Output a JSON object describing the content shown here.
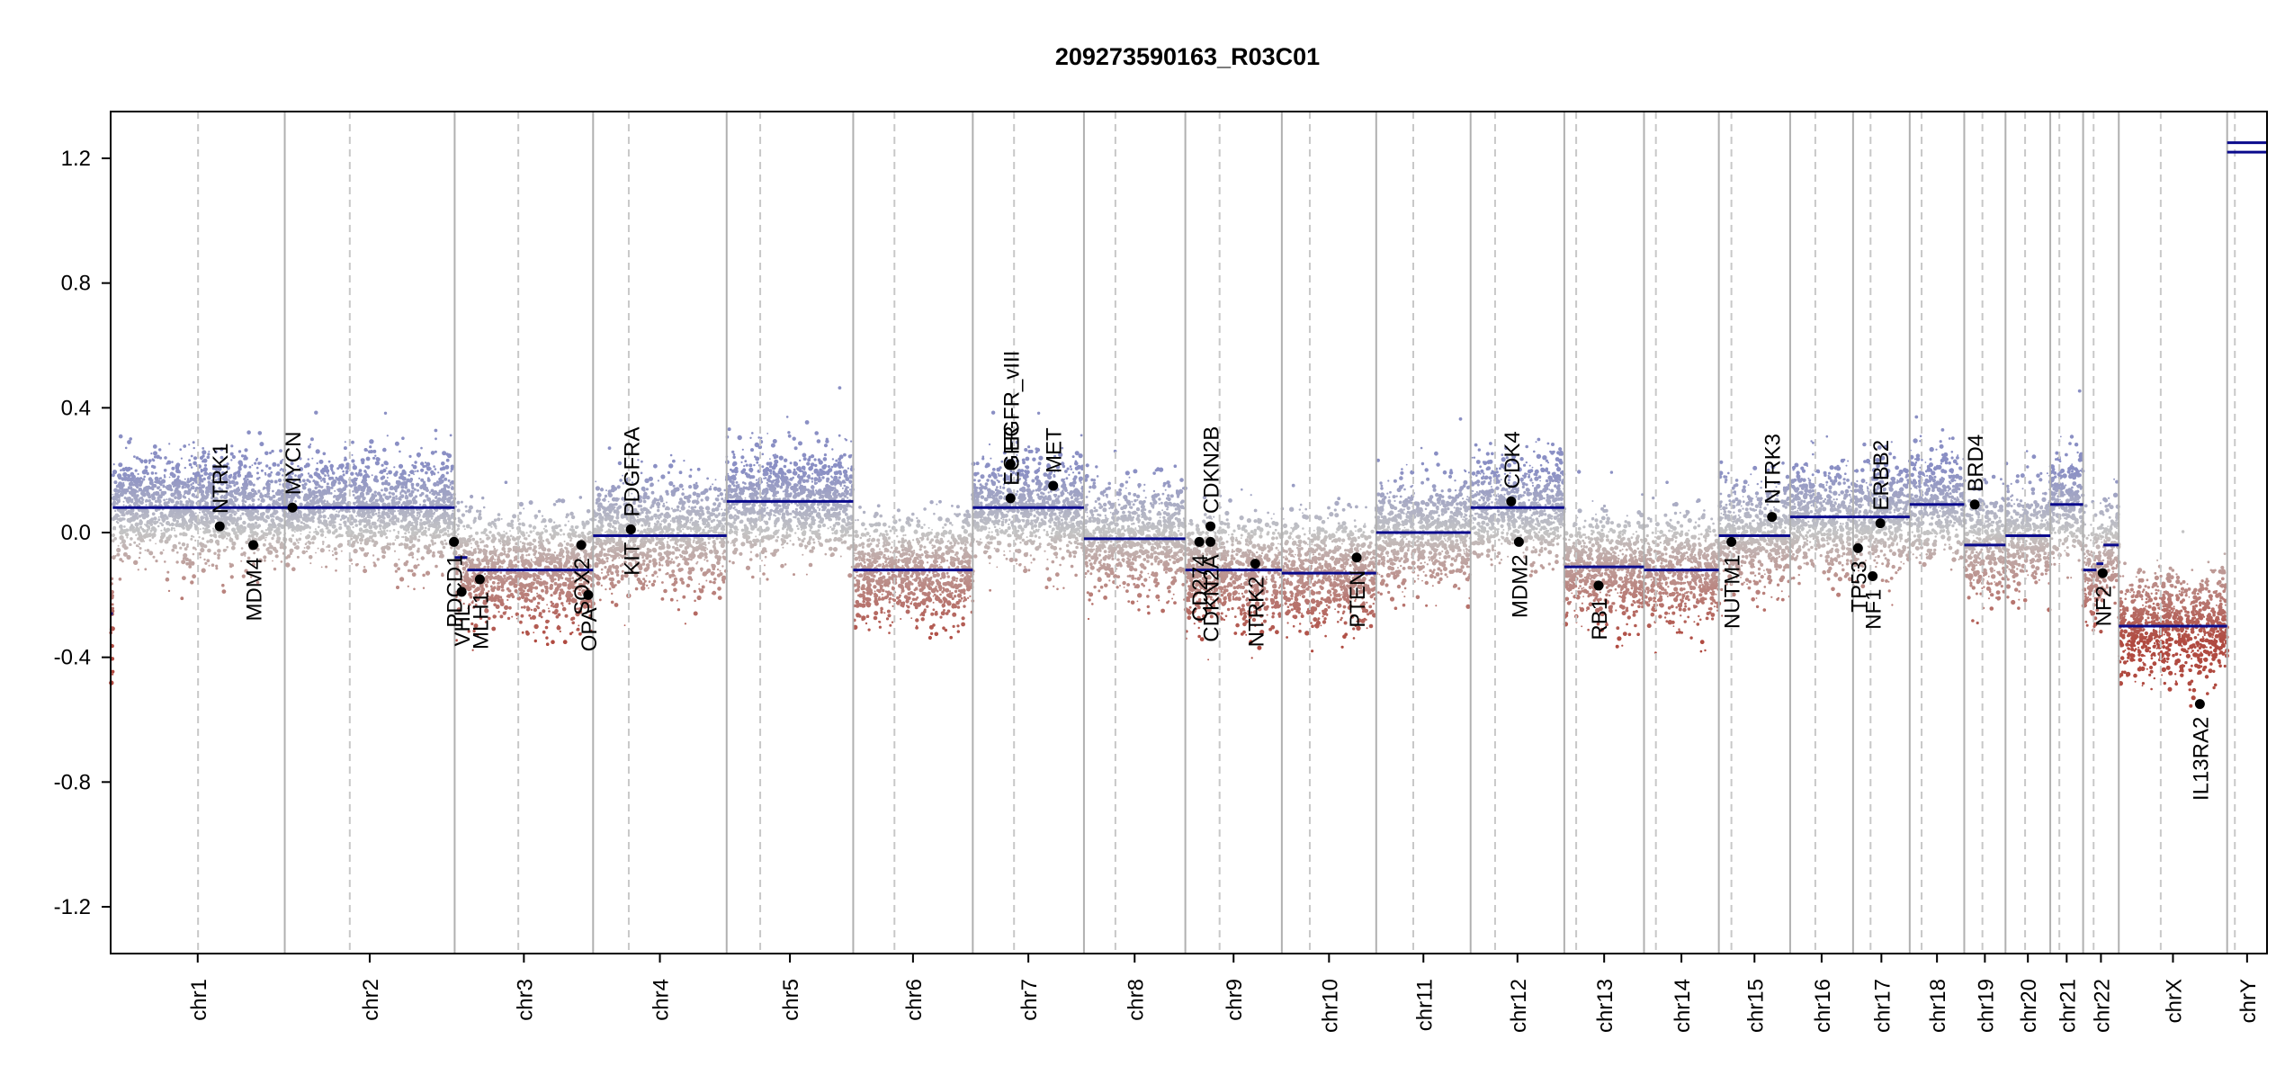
{
  "chart_data": {
    "type": "scatter",
    "title": "209273590163_R03C01",
    "xlabel": "",
    "ylabel": "",
    "ylim": [
      -1.35,
      1.35
    ],
    "yticks": [
      -1.2,
      -0.8,
      -0.4,
      0.0,
      0.4,
      0.8,
      1.2
    ],
    "ytick_labels": [
      "-1.2",
      "-0.8",
      "-0.4",
      "0.0",
      "0.4",
      "0.8",
      "1.2"
    ],
    "x_unit": "cumulative genome position (Mb)",
    "grid": false,
    "colors": {
      "gain": "#8a8fc4",
      "neutral": "#c4c4c4",
      "loss": "#b04a40",
      "segment": "#0a0a8c",
      "chrom_border": "#b0b0b0",
      "centromere": "#c8c8c8",
      "gene_point": "#000000"
    },
    "chromosomes": [
      {
        "name": "chr1",
        "label": "chr1",
        "start": 0,
        "end": 249,
        "centromere": 125
      },
      {
        "name": "chr2",
        "label": "chr2",
        "start": 249,
        "end": 492,
        "centromere": 342
      },
      {
        "name": "chr3",
        "label": "chr3",
        "start": 492,
        "end": 690,
        "centromere": 583
      },
      {
        "name": "chr4",
        "label": "chr4",
        "start": 690,
        "end": 881,
        "centromere": 741
      },
      {
        "name": "chr5",
        "label": "chr5",
        "start": 881,
        "end": 1062,
        "centromere": 929
      },
      {
        "name": "chr6",
        "label": "chr6",
        "start": 1062,
        "end": 1233,
        "centromere": 1121
      },
      {
        "name": "chr7",
        "label": "chr7",
        "start": 1233,
        "end": 1392,
        "centromere": 1292
      },
      {
        "name": "chr8",
        "label": "chr8",
        "start": 1392,
        "end": 1537,
        "centromere": 1437
      },
      {
        "name": "chr9",
        "label": "chr9",
        "start": 1537,
        "end": 1675,
        "centromere": 1586
      },
      {
        "name": "chr10",
        "label": "chr10",
        "start": 1675,
        "end": 1810,
        "centromere": 1715
      },
      {
        "name": "chr11",
        "label": "chr11",
        "start": 1810,
        "end": 1945,
        "centromere": 1863
      },
      {
        "name": "chr12",
        "label": "chr12",
        "start": 1945,
        "end": 2079,
        "centromere": 1980
      },
      {
        "name": "chr13",
        "label": "chr13",
        "start": 2079,
        "end": 2193,
        "centromere": 2096
      },
      {
        "name": "chr14",
        "label": "chr14",
        "start": 2193,
        "end": 2300,
        "centromere": 2210
      },
      {
        "name": "chr15",
        "label": "chr15",
        "start": 2300,
        "end": 2402,
        "centromere": 2318
      },
      {
        "name": "chr16",
        "label": "chr16",
        "start": 2402,
        "end": 2492,
        "centromere": 2438
      },
      {
        "name": "chr17",
        "label": "chr17",
        "start": 2492,
        "end": 2573,
        "centromere": 2517
      },
      {
        "name": "chr18",
        "label": "chr18",
        "start": 2573,
        "end": 2651,
        "centromere": 2590
      },
      {
        "name": "chr19",
        "label": "chr19",
        "start": 2651,
        "end": 2710,
        "centromere": 2677
      },
      {
        "name": "chr20",
        "label": "chr20",
        "start": 2710,
        "end": 2774,
        "centromere": 2738
      },
      {
        "name": "chr21",
        "label": "chr21",
        "start": 2774,
        "end": 2821,
        "centromere": 2787
      },
      {
        "name": "chr22",
        "label": "chr22",
        "start": 2821,
        "end": 2872,
        "centromere": 2836
      },
      {
        "name": "chrX",
        "label": "chrX",
        "start": 2872,
        "end": 3027,
        "centromere": 2932
      },
      {
        "name": "chrY",
        "label": "chrY",
        "start": 3027,
        "end": 3084,
        "centromere": 3038
      }
    ],
    "segments": [
      {
        "chrom": "chr1",
        "x0": 0,
        "x1": 3,
        "y": -0.26
      },
      {
        "chrom": "chr1",
        "x0": 3,
        "x1": 249,
        "y": 0.08
      },
      {
        "chrom": "chr2",
        "x0": 249,
        "x1": 492,
        "y": 0.08
      },
      {
        "chrom": "chr3",
        "x0": 492,
        "x1": 510,
        "y": -0.08
      },
      {
        "chrom": "chr3",
        "x0": 510,
        "x1": 690,
        "y": -0.12
      },
      {
        "chrom": "chr4",
        "x0": 690,
        "x1": 881,
        "y": -0.01
      },
      {
        "chrom": "chr5",
        "x0": 881,
        "x1": 1062,
        "y": 0.1
      },
      {
        "chrom": "chr6",
        "x0": 1062,
        "x1": 1233,
        "y": -0.12
      },
      {
        "chrom": "chr7",
        "x0": 1233,
        "x1": 1392,
        "y": 0.08
      },
      {
        "chrom": "chr8",
        "x0": 1392,
        "x1": 1537,
        "y": -0.02
      },
      {
        "chrom": "chr9",
        "x0": 1537,
        "x1": 1675,
        "y": -0.12
      },
      {
        "chrom": "chr10",
        "x0": 1675,
        "x1": 1810,
        "y": -0.13
      },
      {
        "chrom": "chr11",
        "x0": 1810,
        "x1": 1945,
        "y": 0.0
      },
      {
        "chrom": "chr12",
        "x0": 1945,
        "x1": 2079,
        "y": 0.08
      },
      {
        "chrom": "chr13",
        "x0": 2079,
        "x1": 2193,
        "y": -0.11
      },
      {
        "chrom": "chr14",
        "x0": 2193,
        "x1": 2300,
        "y": -0.12
      },
      {
        "chrom": "chr15",
        "x0": 2300,
        "x1": 2402,
        "y": -0.01
      },
      {
        "chrom": "chr16",
        "x0": 2402,
        "x1": 2492,
        "y": 0.05
      },
      {
        "chrom": "chr17",
        "x0": 2492,
        "x1": 2573,
        "y": 0.05
      },
      {
        "chrom": "chr18",
        "x0": 2573,
        "x1": 2651,
        "y": 0.09
      },
      {
        "chrom": "chr19",
        "x0": 2651,
        "x1": 2710,
        "y": -0.04
      },
      {
        "chrom": "chr20",
        "x0": 2710,
        "x1": 2774,
        "y": -0.01
      },
      {
        "chrom": "chr21",
        "x0": 2774,
        "x1": 2821,
        "y": 0.09
      },
      {
        "chrom": "chr22",
        "x0": 2821,
        "x1": 2840,
        "y": -0.12
      },
      {
        "chrom": "chr22",
        "x0": 2840,
        "x1": 2850,
        "y": -0.1
      },
      {
        "chrom": "chr22",
        "x0": 2850,
        "x1": 2872,
        "y": -0.04
      },
      {
        "chrom": "chrX",
        "x0": 2872,
        "x1": 3027,
        "y": -0.3
      },
      {
        "chrom": "chrY",
        "x0": 3027,
        "x1": 3084,
        "y": 1.22
      },
      {
        "chrom": "chrY",
        "x0": 3027,
        "x1": 3084,
        "y": 1.25
      }
    ],
    "genes": [
      {
        "name": "NTRK1",
        "x": 156,
        "y": 0.02,
        "label_side": "above"
      },
      {
        "name": "MDM4",
        "x": 204,
        "y": -0.04,
        "label_side": "below"
      },
      {
        "name": "MYCN",
        "x": 260,
        "y": 0.08,
        "label_side": "above"
      },
      {
        "name": "PDCD1",
        "x": 491,
        "y": -0.03,
        "label_side": "below"
      },
      {
        "name": "VHL",
        "x": 502,
        "y": -0.19,
        "label_side": "below"
      },
      {
        "name": "MLH1",
        "x": 528,
        "y": -0.15,
        "label_side": "below"
      },
      {
        "name": "SOX2",
        "x": 673,
        "y": -0.04,
        "label_side": "below"
      },
      {
        "name": "OPA",
        "x": 683,
        "y": -0.2,
        "label_side": "below"
      },
      {
        "name": "PDGFRA",
        "x": 744,
        "y": 0.01,
        "label_side": "above"
      },
      {
        "name": "KIT",
        "x": 744,
        "y": 0.01,
        "label_side": "below"
      },
      {
        "name": "EGFR",
        "x": 1287,
        "y": 0.11,
        "label_side": "above"
      },
      {
        "name": "EGFR_vIII",
        "x": 1287,
        "y": 0.22,
        "label_side": "above"
      },
      {
        "name": "MET",
        "x": 1348,
        "y": 0.15,
        "label_side": "above"
      },
      {
        "name": "CDKN2B",
        "x": 1573,
        "y": 0.02,
        "label_side": "above"
      },
      {
        "name": "CDKN2A",
        "x": 1573,
        "y": -0.03,
        "label_side": "below"
      },
      {
        "name": "CD274",
        "x": 1557,
        "y": -0.03,
        "label_side": "below"
      },
      {
        "name": "NTRK2",
        "x": 1637,
        "y": -0.1,
        "label_side": "below"
      },
      {
        "name": "PTEN",
        "x": 1782,
        "y": -0.08,
        "label_side": "below"
      },
      {
        "name": "CDK4",
        "x": 2003,
        "y": 0.1,
        "label_side": "above"
      },
      {
        "name": "MDM2",
        "x": 2014,
        "y": -0.03,
        "label_side": "below"
      },
      {
        "name": "RB1",
        "x": 2128,
        "y": -0.17,
        "label_side": "below"
      },
      {
        "name": "NUTM1",
        "x": 2318,
        "y": -0.03,
        "label_side": "below"
      },
      {
        "name": "NTRK3",
        "x": 2376,
        "y": 0.05,
        "label_side": "above"
      },
      {
        "name": "TP53",
        "x": 2499,
        "y": -0.05,
        "label_side": "below"
      },
      {
        "name": "NF1",
        "x": 2520,
        "y": -0.14,
        "label_side": "below"
      },
      {
        "name": "ERBB2",
        "x": 2531,
        "y": 0.03,
        "label_side": "above"
      },
      {
        "name": "BRD4",
        "x": 2666,
        "y": 0.09,
        "label_side": "above"
      },
      {
        "name": "NF2",
        "x": 2849,
        "y": -0.13,
        "label_side": "below"
      },
      {
        "name": "IL13RA2",
        "x": 2988,
        "y": -0.55,
        "label_side": "below"
      }
    ]
  }
}
